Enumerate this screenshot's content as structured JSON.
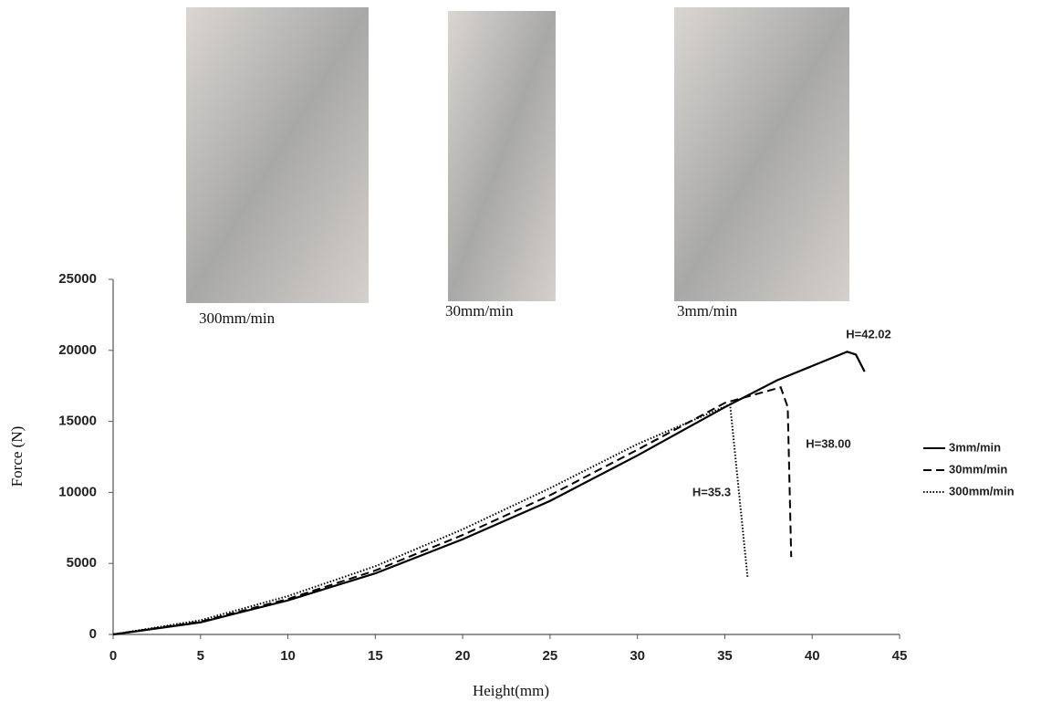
{
  "chart_data": {
    "type": "line",
    "xlabel": "Height(mm)",
    "ylabel": "Force (N)",
    "xlim": [
      0,
      45
    ],
    "xticks": [
      0,
      5,
      10,
      15,
      20,
      25,
      30,
      35,
      40,
      45
    ],
    "ylim": [
      0,
      25000
    ],
    "yticks": [
      0,
      5000,
      10000,
      15000,
      20000,
      25000
    ],
    "grid": false,
    "series": [
      {
        "name": "3mm/min",
        "color": "#000000",
        "dash": "solid",
        "x": [
          0,
          5,
          10,
          15,
          20,
          25,
          30,
          35,
          38,
          40,
          42,
          42.5,
          43
        ],
        "values": [
          0,
          850,
          2400,
          4300,
          6700,
          9400,
          12600,
          16000,
          17900,
          18900,
          19900,
          19700,
          18500
        ]
      },
      {
        "name": "30mm/min",
        "color": "#000000",
        "dash": "dashed",
        "x": [
          0,
          5,
          10,
          15,
          20,
          25,
          30,
          35,
          38.2,
          38.6,
          38.8
        ],
        "values": [
          0,
          900,
          2500,
          4500,
          7000,
          9800,
          13000,
          16300,
          17400,
          16000,
          5450
        ]
      },
      {
        "name": "300mm/min",
        "color": "#000000",
        "dash": "dotted",
        "x": [
          0,
          5,
          10,
          15,
          20,
          25,
          30,
          35.3,
          36.3
        ],
        "values": [
          0,
          1000,
          2700,
          4800,
          7400,
          10300,
          13400,
          16200,
          4050
        ]
      }
    ],
    "annotations": [
      "H=42.02",
      "H=38.00",
      "H=35.3"
    ],
    "photo_captions": [
      "300mm/min",
      "30mm/min",
      "3mm/min"
    ],
    "legend_position": "right"
  }
}
